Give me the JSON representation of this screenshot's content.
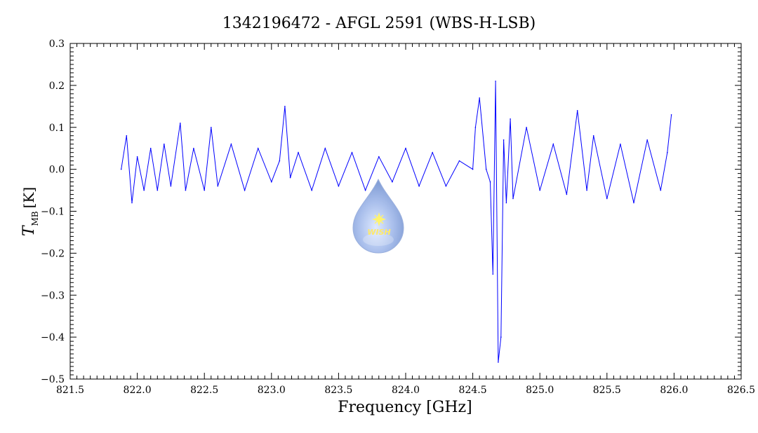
{
  "chart_data": {
    "type": "line",
    "title": "1342196472 - AFGL 2591 (WBS-H-LSB)",
    "xlabel": "Frequency [GHz]",
    "ylabel_main": "T",
    "ylabel_sub": "MB",
    "ylabel_unit": "[K]",
    "xlim": [
      821.5,
      826.5
    ],
    "ylim": [
      -0.5,
      0.3
    ],
    "x_ticks": [
      821.5,
      822.0,
      822.5,
      823.0,
      823.5,
      824.0,
      824.5,
      825.0,
      825.5,
      826.0,
      826.5
    ],
    "x_tick_labels": [
      "821.5",
      "822.0",
      "822.5",
      "823.0",
      "823.5",
      "824.0",
      "824.5",
      "825.0",
      "825.5",
      "826.0",
      "826.5"
    ],
    "y_ticks": [
      -0.5,
      -0.4,
      -0.3,
      -0.2,
      -0.1,
      0.0,
      0.1,
      0.2,
      0.3
    ],
    "y_tick_labels": [
      "−0.5",
      "−0.4",
      "−0.3",
      "−0.2",
      "−0.1",
      "0.0",
      "0.1",
      "0.2",
      "0.3"
    ],
    "grid": false,
    "series": [
      {
        "color": "#0000ff",
        "x": [
          821.88,
          821.92,
          821.96,
          822.0,
          822.05,
          822.1,
          822.15,
          822.2,
          822.25,
          822.32,
          822.36,
          822.42,
          822.5,
          822.55,
          822.6,
          822.7,
          822.8,
          822.9,
          823.0,
          823.06,
          823.1,
          823.14,
          823.2,
          823.3,
          823.4,
          823.5,
          823.6,
          823.7,
          823.8,
          823.9,
          824.0,
          824.1,
          824.2,
          824.3,
          824.4,
          824.5,
          824.52,
          824.55,
          824.6,
          824.63,
          824.65,
          824.67,
          824.69,
          824.71,
          824.73,
          824.75,
          824.78,
          824.8,
          824.9,
          825.0,
          825.1,
          825.2,
          825.28,
          825.35,
          825.4,
          825.5,
          825.6,
          825.7,
          825.8,
          825.9,
          825.95,
          825.98
        ],
        "y": [
          0.0,
          0.08,
          -0.08,
          0.03,
          -0.05,
          0.05,
          -0.05,
          0.06,
          -0.04,
          0.11,
          -0.05,
          0.05,
          -0.05,
          0.1,
          -0.04,
          0.06,
          -0.05,
          0.05,
          -0.03,
          0.02,
          0.15,
          -0.02,
          0.04,
          -0.05,
          0.05,
          -0.04,
          0.04,
          -0.05,
          0.03,
          -0.03,
          0.05,
          -0.04,
          0.04,
          -0.04,
          0.02,
          0.0,
          0.1,
          0.17,
          0.0,
          -0.03,
          -0.25,
          0.21,
          -0.46,
          -0.4,
          0.07,
          -0.08,
          0.12,
          -0.07,
          0.1,
          -0.05,
          0.06,
          -0.06,
          0.14,
          -0.05,
          0.08,
          -0.07,
          0.06,
          -0.08,
          0.07,
          -0.05,
          0.04,
          0.13
        ]
      }
    ]
  },
  "logo": {
    "text": "WISH"
  }
}
